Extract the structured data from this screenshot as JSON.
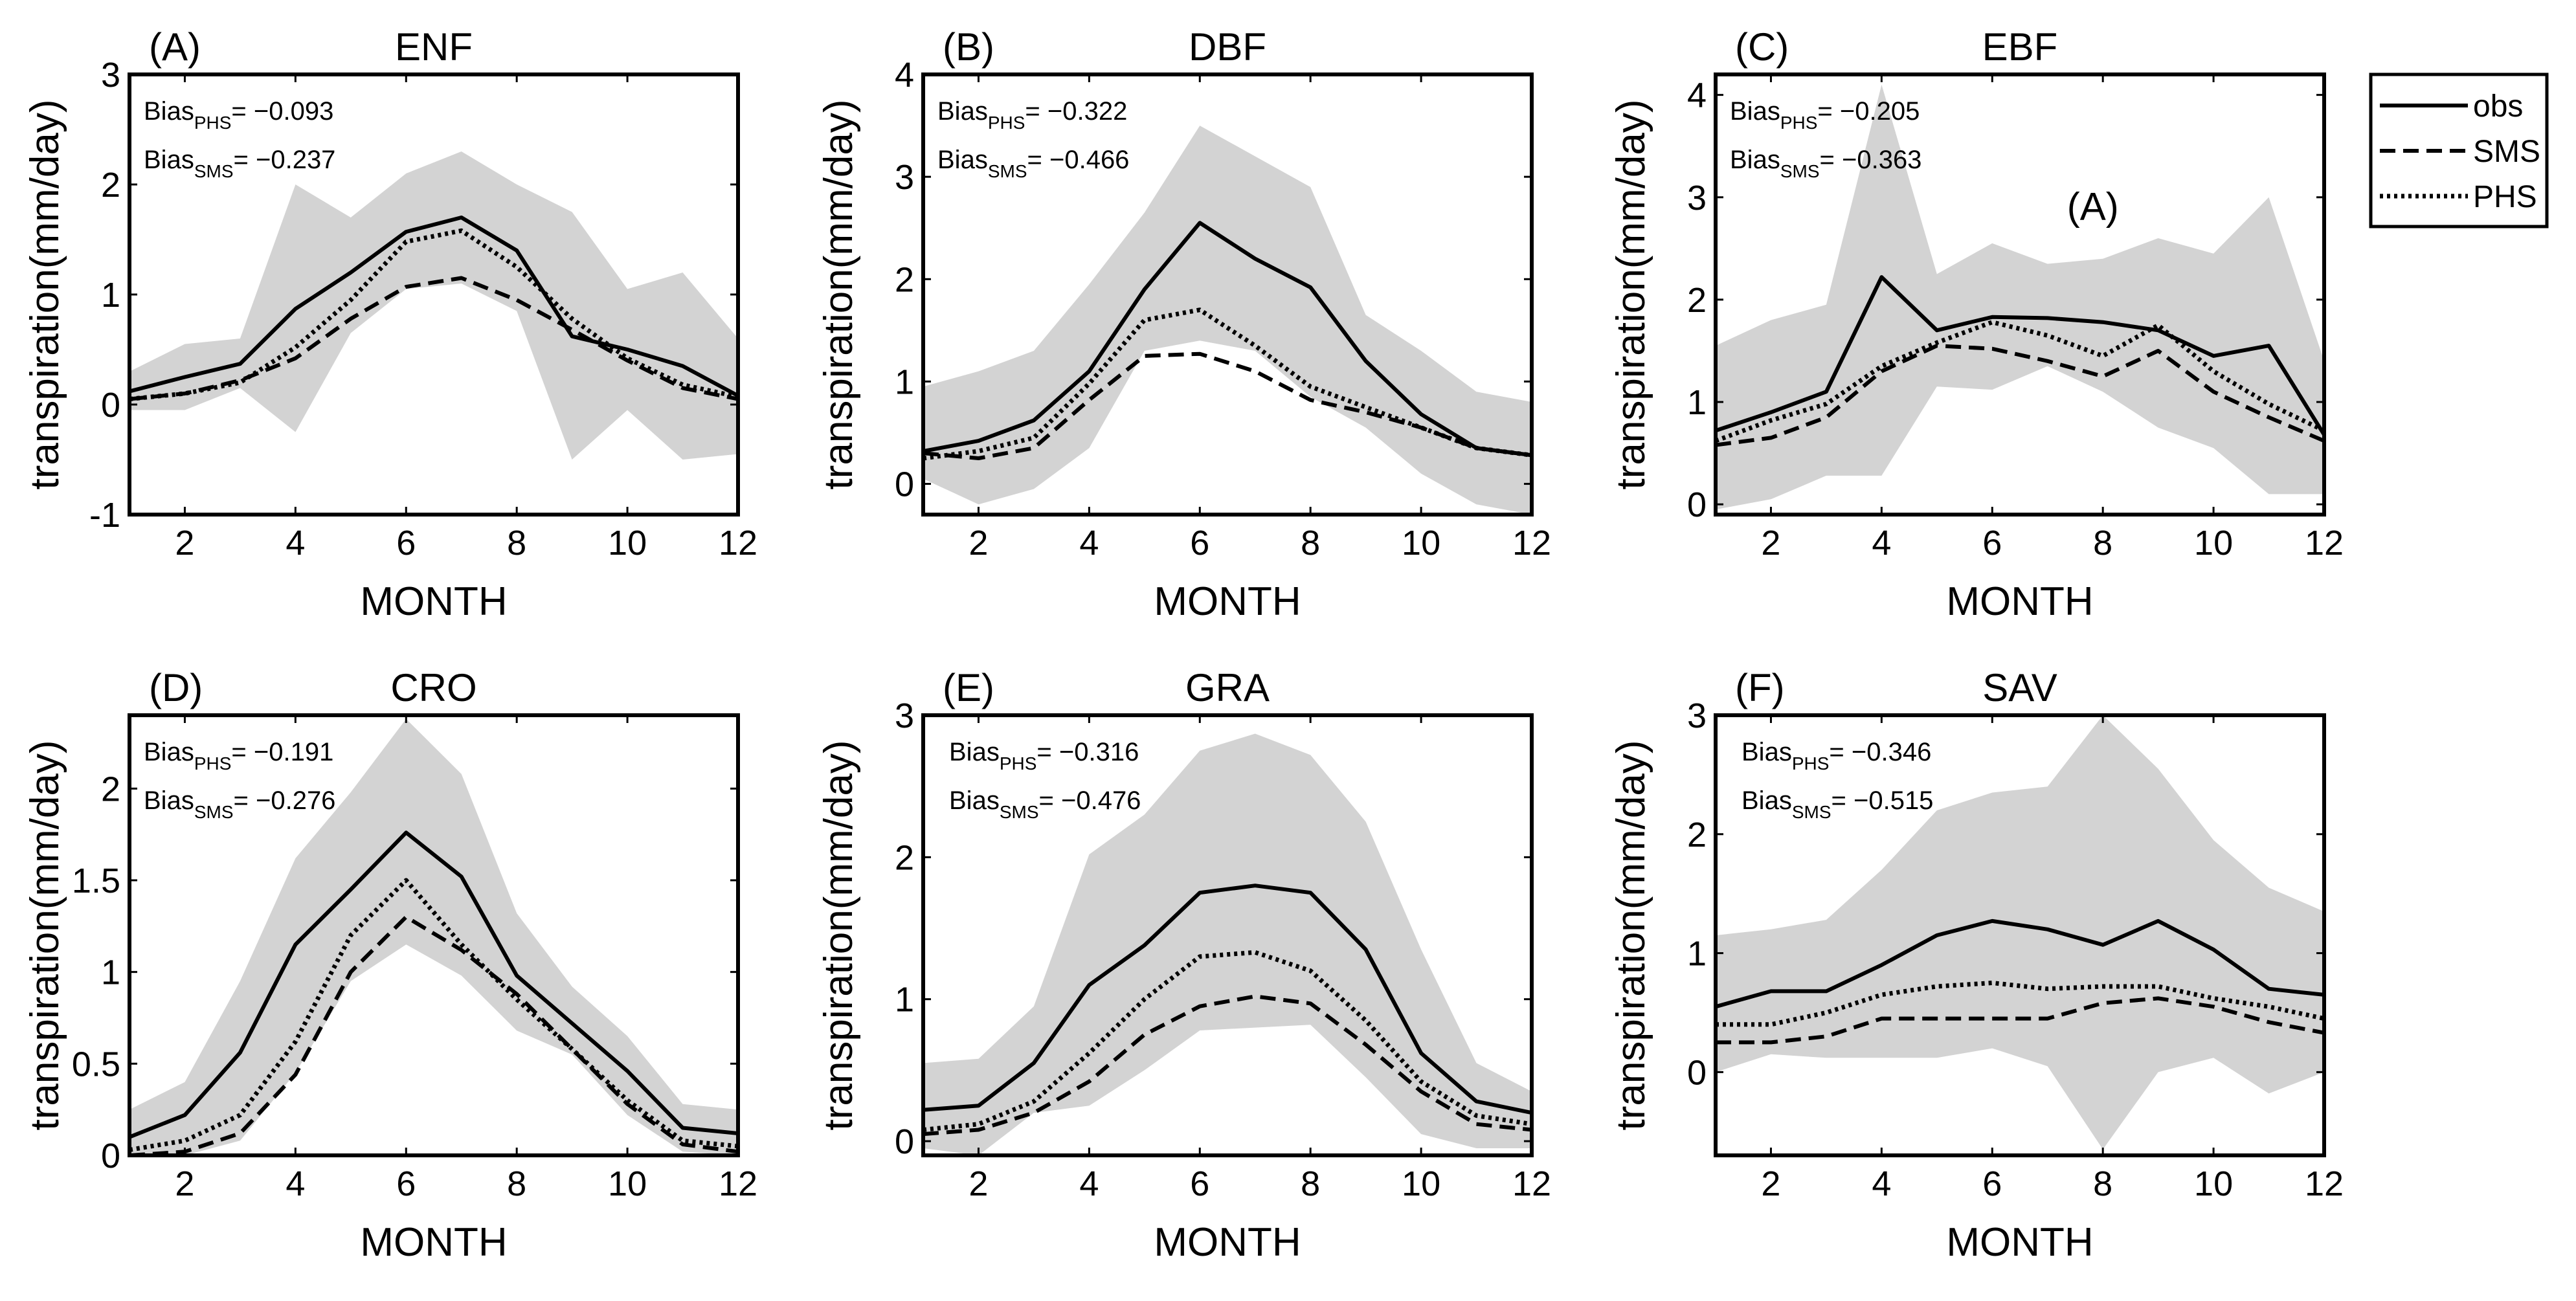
{
  "chart_data": [
    {
      "type": "line",
      "letter": "(A)",
      "title": "ENF",
      "xlabel": "MONTH",
      "ylabel": "transpiration(mm/day)",
      "xlim": [
        1,
        12
      ],
      "ylim": [
        -1,
        3
      ],
      "xticks": [
        2,
        4,
        6,
        8,
        10,
        12
      ],
      "yticks": [
        -1,
        0,
        1,
        2,
        3
      ],
      "x": [
        1,
        2,
        3,
        4,
        5,
        6,
        7,
        8,
        9,
        10,
        11,
        12
      ],
      "series": [
        {
          "name": "obs",
          "values": [
            0.12,
            0.25,
            0.37,
            0.87,
            1.2,
            1.57,
            1.7,
            1.4,
            0.62,
            0.5,
            0.35,
            0.08
          ]
        },
        {
          "name": "SMS",
          "values": [
            0.05,
            0.1,
            0.22,
            0.42,
            0.78,
            1.07,
            1.15,
            0.95,
            0.68,
            0.4,
            0.15,
            0.05
          ]
        },
        {
          "name": "PHS",
          "values": [
            0.05,
            0.1,
            0.2,
            0.52,
            0.95,
            1.48,
            1.58,
            1.25,
            0.78,
            0.42,
            0.18,
            0.07
          ]
        }
      ],
      "band": {
        "upper": [
          0.3,
          0.55,
          0.6,
          2.0,
          1.7,
          2.1,
          2.3,
          2.0,
          1.75,
          1.05,
          1.2,
          0.6
        ],
        "lower": [
          -0.05,
          -0.05,
          0.15,
          -0.25,
          0.65,
          1.05,
          1.1,
          0.85,
          -0.5,
          -0.05,
          -0.5,
          -0.45
        ]
      },
      "bias": [
        {
          "main": "Bias",
          "sub": "PHS",
          "value": "= −0.093"
        },
        {
          "main": "Bias",
          "sub": "SMS",
          "value": "= −0.237"
        }
      ]
    },
    {
      "type": "line",
      "letter": "(B)",
      "title": "DBF",
      "xlabel": "MONTH",
      "ylabel": "transpiration(mm/day)",
      "xlim": [
        1,
        12
      ],
      "ylim": [
        -0.3,
        4
      ],
      "xticks": [
        2,
        4,
        6,
        8,
        10,
        12
      ],
      "yticks": [
        0,
        1,
        2,
        3,
        4
      ],
      "x": [
        1,
        2,
        3,
        4,
        5,
        6,
        7,
        8,
        9,
        10,
        11,
        12
      ],
      "series": [
        {
          "name": "obs",
          "values": [
            0.32,
            0.42,
            0.62,
            1.1,
            1.9,
            2.55,
            2.2,
            1.92,
            1.2,
            0.68,
            0.35,
            0.28
          ]
        },
        {
          "name": "SMS",
          "values": [
            0.3,
            0.25,
            0.35,
            0.82,
            1.25,
            1.27,
            1.1,
            0.82,
            0.7,
            0.55,
            0.35,
            0.28
          ]
        },
        {
          "name": "PHS",
          "values": [
            0.25,
            0.32,
            0.45,
            0.98,
            1.6,
            1.7,
            1.35,
            0.95,
            0.75,
            0.55,
            0.35,
            0.28
          ]
        }
      ],
      "band": {
        "upper": [
          0.95,
          1.1,
          1.3,
          1.95,
          2.65,
          3.5,
          3.2,
          2.9,
          1.65,
          1.3,
          0.9,
          0.8
        ],
        "lower": [
          0.05,
          -0.2,
          -0.05,
          0.35,
          1.3,
          1.4,
          1.3,
          0.85,
          0.55,
          0.1,
          -0.2,
          -0.3
        ]
      },
      "bias": [
        {
          "main": "Bias",
          "sub": "PHS",
          "value": "= −0.322"
        },
        {
          "main": "Bias",
          "sub": "SMS",
          "value": "= −0.466"
        }
      ]
    },
    {
      "type": "line",
      "letter": "(C)",
      "title": "EBF",
      "xlabel": "MONTH",
      "ylabel": "transpiration(mm/day)",
      "xlim": [
        1,
        12
      ],
      "ylim": [
        -0.1,
        4.2
      ],
      "xticks": [
        2,
        4,
        6,
        8,
        10,
        12
      ],
      "yticks": [
        0,
        1,
        2,
        3,
        4
      ],
      "x": [
        1,
        2,
        3,
        4,
        5,
        6,
        7,
        8,
        9,
        10,
        11,
        12
      ],
      "series": [
        {
          "name": "obs",
          "values": [
            0.72,
            0.9,
            1.1,
            2.22,
            1.7,
            1.83,
            1.82,
            1.78,
            1.7,
            1.45,
            1.55,
            0.68
          ]
        },
        {
          "name": "SMS",
          "values": [
            0.58,
            0.65,
            0.85,
            1.3,
            1.55,
            1.52,
            1.4,
            1.25,
            1.5,
            1.1,
            0.85,
            0.62
          ]
        },
        {
          "name": "PHS",
          "values": [
            0.62,
            0.82,
            0.98,
            1.35,
            1.58,
            1.78,
            1.65,
            1.45,
            1.75,
            1.3,
            0.98,
            0.72
          ]
        }
      ],
      "band": {
        "upper": [
          1.55,
          1.8,
          1.95,
          4.1,
          2.25,
          2.55,
          2.35,
          2.4,
          2.6,
          2.45,
          3.0,
          1.4
        ],
        "lower": [
          -0.05,
          0.05,
          0.28,
          0.28,
          1.15,
          1.12,
          1.35,
          1.1,
          0.75,
          0.55,
          0.1,
          0.1
        ]
      },
      "annotation": "(A)",
      "bias": [
        {
          "main": "Bias",
          "sub": "PHS",
          "value": "= −0.205"
        },
        {
          "main": "Bias",
          "sub": "SMS",
          "value": "= −0.363"
        }
      ]
    },
    {
      "type": "line",
      "letter": "(D)",
      "title": "CRO",
      "xlabel": "MONTH",
      "ylabel": "transpiration(mm/day)",
      "xlim": [
        1,
        12
      ],
      "ylim": [
        0,
        2.4
      ],
      "xticks": [
        2,
        4,
        6,
        8,
        10,
        12
      ],
      "yticks": [
        0,
        0.5,
        1,
        1.5,
        2
      ],
      "x": [
        1,
        2,
        3,
        4,
        5,
        6,
        7,
        8,
        9,
        10,
        11,
        12
      ],
      "series": [
        {
          "name": "obs",
          "values": [
            0.1,
            0.22,
            0.56,
            1.15,
            1.45,
            1.76,
            1.52,
            0.98,
            0.72,
            0.46,
            0.15,
            0.12
          ]
        },
        {
          "name": "SMS",
          "values": [
            0.0,
            0.02,
            0.12,
            0.44,
            1.0,
            1.3,
            1.12,
            0.88,
            0.58,
            0.28,
            0.06,
            0.02
          ]
        },
        {
          "name": "PHS",
          "values": [
            0.03,
            0.08,
            0.22,
            0.62,
            1.2,
            1.5,
            1.15,
            0.85,
            0.58,
            0.3,
            0.08,
            0.05
          ]
        }
      ],
      "band": {
        "upper": [
          0.25,
          0.4,
          0.95,
          1.62,
          1.98,
          2.38,
          2.08,
          1.32,
          0.92,
          0.65,
          0.28,
          0.25
        ],
        "lower": [
          0.0,
          0.0,
          0.08,
          0.45,
          0.95,
          1.15,
          0.98,
          0.68,
          0.55,
          0.22,
          0.02,
          0.0
        ]
      },
      "bias": [
        {
          "main": "Bias",
          "sub": "PHS",
          "value": "= −0.191"
        },
        {
          "main": "Bias",
          "sub": "SMS",
          "value": "= −0.276"
        }
      ]
    },
    {
      "type": "line",
      "letter": "(E)",
      "title": "GRA",
      "xlabel": "MONTH",
      "ylabel": "transpiration(mm/day)",
      "xlim": [
        1,
        12
      ],
      "ylim": [
        -0.1,
        3
      ],
      "xticks": [
        2,
        4,
        6,
        8,
        10,
        12
      ],
      "yticks": [
        0,
        1,
        2,
        3
      ],
      "x": [
        1,
        2,
        3,
        4,
        5,
        6,
        7,
        8,
        9,
        10,
        11,
        12
      ],
      "series": [
        {
          "name": "obs",
          "values": [
            0.22,
            0.25,
            0.55,
            1.1,
            1.38,
            1.75,
            1.8,
            1.75,
            1.35,
            0.62,
            0.28,
            0.2
          ]
        },
        {
          "name": "SMS",
          "values": [
            0.05,
            0.08,
            0.2,
            0.42,
            0.75,
            0.95,
            1.02,
            0.97,
            0.68,
            0.35,
            0.12,
            0.08
          ]
        },
        {
          "name": "PHS",
          "values": [
            0.08,
            0.12,
            0.28,
            0.62,
            1.0,
            1.3,
            1.33,
            1.2,
            0.85,
            0.42,
            0.18,
            0.12
          ]
        }
      ],
      "band": {
        "upper": [
          0.55,
          0.58,
          0.95,
          2.02,
          2.3,
          2.75,
          2.87,
          2.72,
          2.25,
          1.35,
          0.55,
          0.35
        ],
        "lower": [
          -0.05,
          -0.1,
          0.2,
          0.25,
          0.5,
          0.78,
          0.8,
          0.82,
          0.45,
          0.05,
          -0.05,
          -0.05
        ]
      },
      "bias": [
        {
          "main": "Bias",
          "sub": "PHS",
          "value": "= −0.316"
        },
        {
          "main": "Bias",
          "sub": "SMS",
          "value": "= −0.476"
        }
      ]
    },
    {
      "type": "line",
      "letter": "(F)",
      "title": "SAV",
      "xlabel": "MONTH",
      "ylabel": "transpiration(mm/day)",
      "xlim": [
        1,
        12
      ],
      "ylim": [
        -0.7,
        3
      ],
      "xticks": [
        2,
        4,
        6,
        8,
        10,
        12
      ],
      "yticks": [
        0,
        1,
        2,
        3
      ],
      "x": [
        1,
        2,
        3,
        4,
        5,
        6,
        7,
        8,
        9,
        10,
        11,
        12
      ],
      "series": [
        {
          "name": "obs",
          "values": [
            0.55,
            0.68,
            0.68,
            0.9,
            1.15,
            1.27,
            1.2,
            1.07,
            1.27,
            1.03,
            0.7,
            0.65
          ]
        },
        {
          "name": "SMS",
          "values": [
            0.25,
            0.25,
            0.3,
            0.45,
            0.45,
            0.45,
            0.45,
            0.58,
            0.62,
            0.55,
            0.42,
            0.33
          ]
        },
        {
          "name": "PHS",
          "values": [
            0.4,
            0.4,
            0.5,
            0.65,
            0.72,
            0.75,
            0.7,
            0.72,
            0.72,
            0.62,
            0.55,
            0.45
          ]
        }
      ],
      "band": {
        "upper": [
          1.15,
          1.2,
          1.28,
          1.7,
          2.2,
          2.35,
          2.4,
          3.0,
          2.55,
          1.95,
          1.55,
          1.35
        ],
        "lower": [
          0.0,
          0.15,
          0.12,
          0.12,
          0.12,
          0.2,
          0.05,
          -0.65,
          0.0,
          0.12,
          -0.18,
          0.0
        ]
      },
      "bias": [
        {
          "main": "Bias",
          "sub": "PHS",
          "value": "= −0.346"
        },
        {
          "main": "Bias",
          "sub": "SMS",
          "value": "= −0.515"
        }
      ]
    }
  ],
  "legend": {
    "entries": [
      {
        "name": "obs",
        "style": "solid"
      },
      {
        "name": "SMS",
        "style": "dashed"
      },
      {
        "name": "PHS",
        "style": "dotted"
      }
    ],
    "placement": "right"
  },
  "colors": {
    "band": "#d3d3d3",
    "lines": "#000000",
    "axes": "#000000",
    "background": "#ffffff"
  }
}
